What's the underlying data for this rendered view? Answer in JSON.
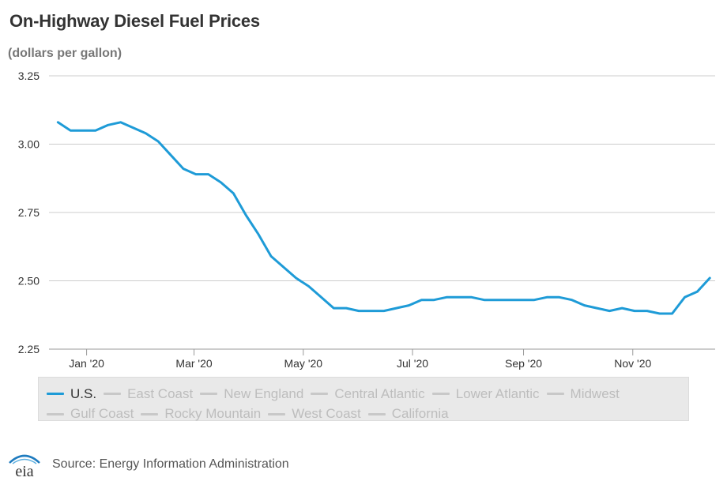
{
  "header": {
    "title": "On-Highway Diesel Fuel Prices",
    "subtitle": "(dollars per gallon)"
  },
  "colors": {
    "series": "#1e9bd7",
    "inactive": "#c8c8c8",
    "grid": "#cccccc",
    "logo": "#1e7bbf"
  },
  "chart_data": {
    "type": "line",
    "title": "On-Highway Diesel Fuel Prices",
    "ylabel": "(dollars per gallon)",
    "xlabel": "",
    "ylim": [
      2.25,
      3.25
    ],
    "yticks": [
      2.25,
      2.5,
      2.75,
      3.0,
      3.25
    ],
    "ytick_labels": [
      "2.25",
      "2.50",
      "2.75",
      "3.00",
      "3.25"
    ],
    "xticks": [
      "2020-01-01",
      "2020-03-01",
      "2020-05-01",
      "2020-07-01",
      "2020-09-01",
      "2020-11-01"
    ],
    "xtick_labels": [
      "Jan '20",
      "Mar '20",
      "May '20",
      "Jul '20",
      "Sep '20",
      "Nov '20"
    ],
    "xlim": [
      "2019-12-11",
      "2020-12-17"
    ],
    "grid": true,
    "legend_position": "bottom",
    "series": [
      {
        "name": "U.S.",
        "color": "#1e9bd7",
        "x": [
          "2019-12-16",
          "2019-12-23",
          "2019-12-30",
          "2020-01-06",
          "2020-01-13",
          "2020-01-20",
          "2020-01-27",
          "2020-02-03",
          "2020-02-10",
          "2020-02-17",
          "2020-02-24",
          "2020-03-02",
          "2020-03-09",
          "2020-03-16",
          "2020-03-23",
          "2020-03-30",
          "2020-04-06",
          "2020-04-13",
          "2020-04-20",
          "2020-04-27",
          "2020-05-04",
          "2020-05-11",
          "2020-05-18",
          "2020-05-25",
          "2020-06-01",
          "2020-06-08",
          "2020-06-15",
          "2020-06-22",
          "2020-06-29",
          "2020-07-06",
          "2020-07-13",
          "2020-07-20",
          "2020-07-27",
          "2020-08-03",
          "2020-08-10",
          "2020-08-17",
          "2020-08-24",
          "2020-08-31",
          "2020-09-07",
          "2020-09-14",
          "2020-09-21",
          "2020-09-28",
          "2020-10-05",
          "2020-10-12",
          "2020-10-19",
          "2020-10-26",
          "2020-11-02",
          "2020-11-09",
          "2020-11-16",
          "2020-11-23",
          "2020-11-30",
          "2020-12-07",
          "2020-12-14"
        ],
        "values": [
          3.08,
          3.05,
          3.05,
          3.05,
          3.07,
          3.08,
          3.06,
          3.04,
          3.01,
          2.96,
          2.91,
          2.89,
          2.89,
          2.86,
          2.82,
          2.74,
          2.67,
          2.59,
          2.55,
          2.51,
          2.48,
          2.44,
          2.4,
          2.4,
          2.39,
          2.39,
          2.39,
          2.4,
          2.41,
          2.43,
          2.43,
          2.44,
          2.44,
          2.44,
          2.43,
          2.43,
          2.43,
          2.43,
          2.43,
          2.44,
          2.44,
          2.43,
          2.41,
          2.4,
          2.39,
          2.4,
          2.39,
          2.39,
          2.38,
          2.38,
          2.44,
          2.46,
          2.51
        ]
      },
      {
        "name": "East Coast",
        "values": []
      },
      {
        "name": "New England",
        "values": []
      },
      {
        "name": "Central Atlantic",
        "values": []
      },
      {
        "name": "Lower Atlantic",
        "values": []
      },
      {
        "name": "Midwest",
        "values": []
      },
      {
        "name": "Gulf Coast",
        "values": []
      },
      {
        "name": "Rocky Mountain",
        "values": []
      },
      {
        "name": "West Coast",
        "values": []
      },
      {
        "name": "California",
        "values": []
      }
    ]
  },
  "legend": {
    "items": [
      {
        "label": "U.S.",
        "active": true
      },
      {
        "label": "East Coast",
        "active": false
      },
      {
        "label": "New England",
        "active": false
      },
      {
        "label": "Central Atlantic",
        "active": false
      },
      {
        "label": "Lower Atlantic",
        "active": false
      },
      {
        "label": "Midwest",
        "active": false
      },
      {
        "label": "Gulf Coast",
        "active": false
      },
      {
        "label": "Rocky Mountain",
        "active": false
      },
      {
        "label": "West Coast",
        "active": false
      },
      {
        "label": "California",
        "active": false
      }
    ]
  },
  "footer": {
    "logo_text": "eia",
    "source": "Source: Energy Information Administration"
  }
}
